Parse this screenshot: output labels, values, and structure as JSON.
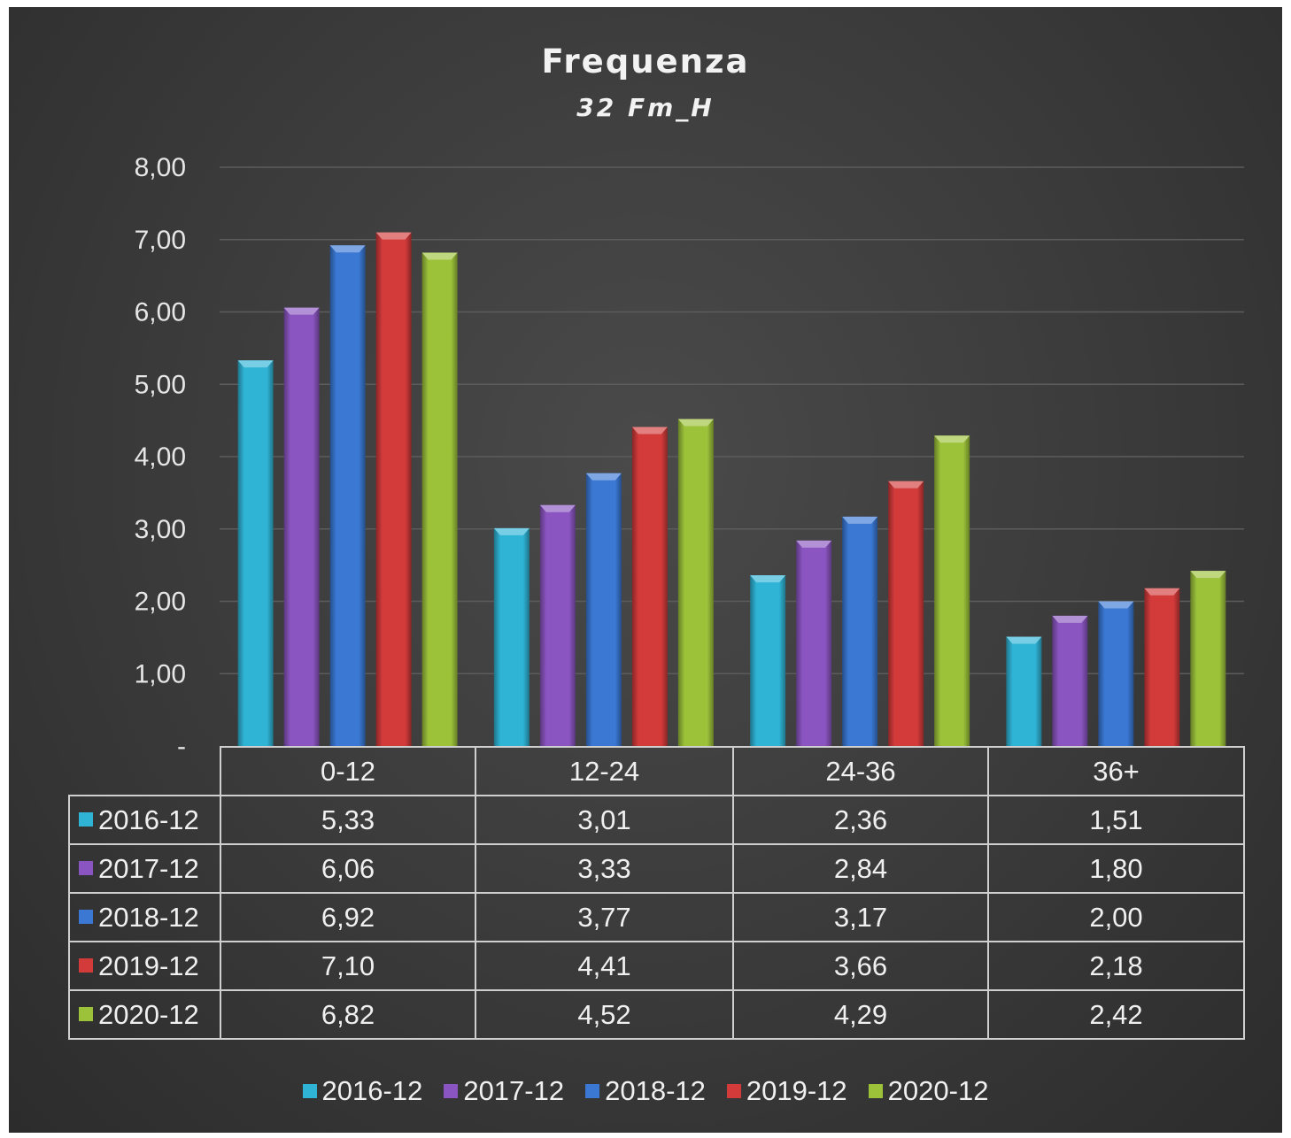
{
  "chart_data": {
    "type": "bar",
    "title": "Frequenza",
    "subtitle": "32 Fm_H",
    "categories": [
      "0-12",
      "12-24",
      "24-36",
      "36+"
    ],
    "series": [
      {
        "name": "2016-12",
        "color": "#2fb4d6",
        "values": [
          5.33,
          3.01,
          2.36,
          1.51
        ],
        "labels": [
          "5,33",
          "3,01",
          "2,36",
          "1,51"
        ]
      },
      {
        "name": "2017-12",
        "color": "#8a55c0",
        "values": [
          6.06,
          3.33,
          2.84,
          1.8
        ],
        "labels": [
          "6,06",
          "3,33",
          "2,84",
          "1,80"
        ]
      },
      {
        "name": "2018-12",
        "color": "#3a78d4",
        "values": [
          6.92,
          3.77,
          3.17,
          2.0
        ],
        "labels": [
          "6,92",
          "3,77",
          "3,17",
          "2,00"
        ]
      },
      {
        "name": "2019-12",
        "color": "#d33b3b",
        "values": [
          7.1,
          4.41,
          3.66,
          2.18
        ],
        "labels": [
          "7,10",
          "4,41",
          "3,66",
          "2,18"
        ]
      },
      {
        "name": "2020-12",
        "color": "#9cc23a",
        "values": [
          6.82,
          4.52,
          4.29,
          2.42
        ],
        "labels": [
          "6,82",
          "4,52",
          "4,29",
          "2,42"
        ]
      }
    ],
    "y_ticks": [
      "-",
      "1,00",
      "2,00",
      "3,00",
      "4,00",
      "5,00",
      "6,00",
      "7,00",
      "8,00"
    ],
    "ylim": [
      0,
      8
    ],
    "grid": true,
    "legend_position": "bottom",
    "data_table": true
  }
}
